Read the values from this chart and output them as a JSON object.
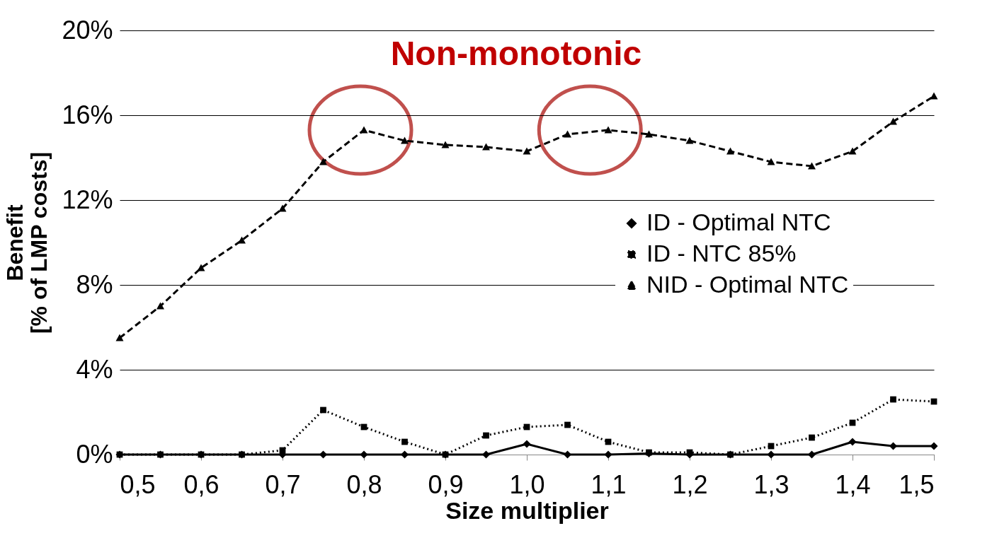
{
  "chart_data": {
    "type": "line",
    "xlabel": "Size multiplier",
    "ylabel": "Benefit\n[% of LMP costs]",
    "annotations": [
      "Non-monotonic"
    ],
    "x": [
      0.5,
      0.55,
      0.6,
      0.65,
      0.7,
      0.75,
      0.8,
      0.85,
      0.9,
      0.95,
      1.0,
      1.05,
      1.1,
      1.15,
      1.2,
      1.25,
      1.3,
      1.35,
      1.4,
      1.45,
      1.5
    ],
    "series": [
      {
        "name": "ID - Optimal NTC",
        "color": "#000000",
        "marker": "diamond",
        "line_style": "solid",
        "values": [
          0,
          0,
          0,
          0,
          0,
          0,
          0,
          0,
          0,
          0,
          0.5,
          0,
          0,
          0.05,
          0,
          0,
          0,
          0,
          0.6,
          0.4,
          0.4
        ]
      },
      {
        "name": "ID - NTC 85%",
        "color": "#000000",
        "marker": "square",
        "line_style": "dotted",
        "values": [
          0,
          0,
          0,
          0,
          0.2,
          2.1,
          1.3,
          0.6,
          0,
          0.9,
          1.3,
          1.4,
          0.6,
          0.1,
          0.1,
          0,
          0.4,
          0.8,
          1.5,
          2.6,
          2.5
        ]
      },
      {
        "name": "NID - Optimal NTC",
        "color": "#000000",
        "marker": "triangle",
        "line_style": "dashed",
        "values": [
          5.5,
          7.0,
          8.8,
          10.1,
          11.6,
          13.8,
          15.3,
          14.8,
          14.6,
          14.5,
          14.3,
          15.1,
          15.3,
          15.1,
          14.8,
          14.3,
          13.8,
          13.6,
          14.3,
          15.7,
          16.9
        ]
      }
    ],
    "xlim": [
      0.5,
      1.5
    ],
    "xticks": [
      {
        "value": 0.5,
        "label": "0,5"
      },
      {
        "value": 0.6,
        "label": "0,6"
      },
      {
        "value": 0.7,
        "label": "0,7"
      },
      {
        "value": 0.8,
        "label": "0,8"
      },
      {
        "value": 0.9,
        "label": "0,9"
      },
      {
        "value": 1.0,
        "label": "1,0"
      },
      {
        "value": 1.1,
        "label": "1,1"
      },
      {
        "value": 1.2,
        "label": "1,2"
      },
      {
        "value": 1.3,
        "label": "1,3"
      },
      {
        "value": 1.4,
        "label": "1,4"
      },
      {
        "value": 1.5,
        "label": "1,5"
      }
    ],
    "ylim": [
      0,
      20
    ],
    "yticks": [
      {
        "value": 0,
        "label": "0%"
      },
      {
        "value": 4,
        "label": "4%"
      },
      {
        "value": 8,
        "label": "8%"
      },
      {
        "value": 12,
        "label": "12%"
      },
      {
        "value": 16,
        "label": "16%"
      },
      {
        "value": 20,
        "label": "20%"
      }
    ],
    "grid": "y",
    "legend": "right"
  }
}
